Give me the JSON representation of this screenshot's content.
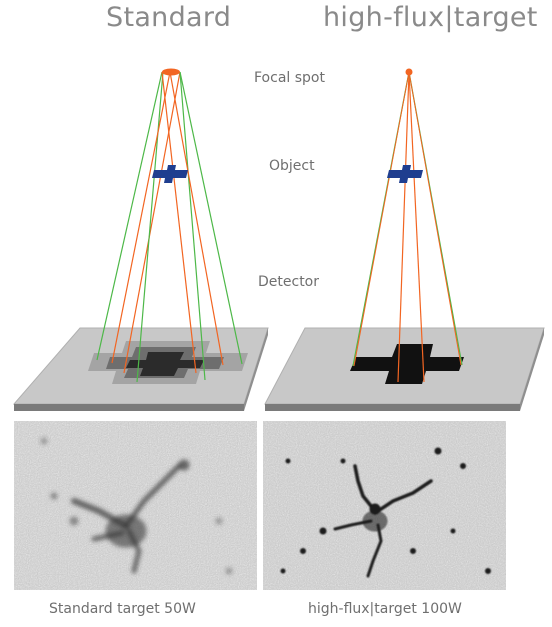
{
  "titles": {
    "standard": "Standard",
    "high_flux": "high-flux|target"
  },
  "labels": {
    "focal_spot": "Focal spot",
    "object": "Object",
    "detector": "Detector"
  },
  "captions": {
    "left": "Standard target 50W",
    "right": "high-flux|target 100W"
  },
  "colors": {
    "focal_spot": "#f26522",
    "object": "#1f3e8f",
    "ray_green": "#4db848",
    "ray_orange": "#f26522",
    "detector_plate": "#c8c8c8",
    "detector_edge": "#8a8a8a",
    "shadow_dark": "#2b2b2b",
    "shadow_mid": "#6e6e6e",
    "shadow_light": "#a0a0a0",
    "shadow_sharp": "#111111"
  }
}
